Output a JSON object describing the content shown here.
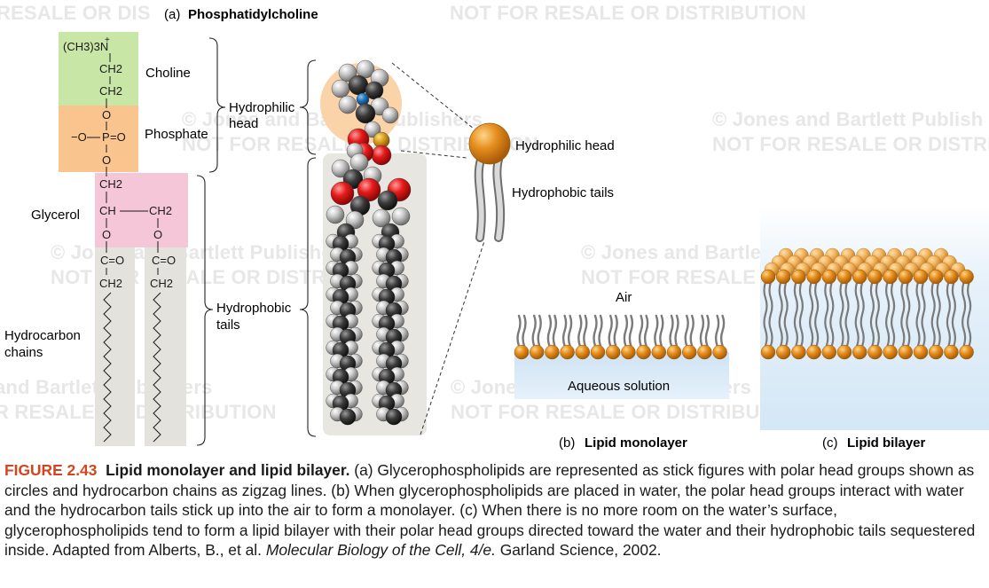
{
  "watermarks": [
    "RESALE OR DIS",
    "NOT FOR RESALE OR DISTRIBUTION",
    "© Jones and Bartlett Publishers",
    "NOT FOR RESALE OR DISTRIBUTION",
    "© Jones and Bartlett Publish",
    "NOT FOR RESALE OR DISTRI",
    "© Jones and Bartlett Publishers",
    "NOT FOR RESALE OR DISTRIBUTION",
    "© Jones and Bartlett Publishers",
    "NOT FOR RESALE OR DISTRIBUTION",
    "and Bartlett Publishers",
    "R RESALE OR DISTRIBUTION",
    "© Jones and Bartlett Publishers",
    "NOT FOR RESALE OR DISTRIBUTION"
  ],
  "panel_a": {
    "label": "(a)",
    "title": "Phosphatidylcholine",
    "formula": {
      "trimethylammonium": "(CH3)3N",
      "plus": "+",
      "ch2": "CH2",
      "o": "O",
      "o_minus": "−O",
      "p": "P",
      "eq_o": "=O",
      "ch": "CH",
      "c_eq_o": "C=O"
    },
    "labels": {
      "choline": "Choline",
      "phosphate": "Phosphate",
      "glycerol": "Glycerol",
      "hydrocarbon_1": "Hydrocarbon",
      "hydrocarbon_2": "chains",
      "hydrophilic_1": "Hydrophilic",
      "hydrophilic_2": "head",
      "hydrophobic_1": "Hydrophobic",
      "hydrophobic_2": "tails"
    },
    "colors": {
      "choline": "#c8e6a5",
      "phosphate": "#f9c48e",
      "glycerol": "#f5c6d7",
      "chains": "#e4e2dd",
      "model_panel": "#e8e6e1",
      "head_halo": "#fbd3a9"
    }
  },
  "schematic": {
    "head_label": "Hydrophilic head",
    "tails_label": "Hydrophobic tails",
    "head_color": "#e08a22"
  },
  "panel_b": {
    "label": "(b)",
    "title": "Lipid monolayer",
    "air": "Air",
    "water": "Aqueous solution"
  },
  "panel_c": {
    "label": "(c)",
    "title": "Lipid bilayer",
    "water_color": "#d8eaf7"
  },
  "caption": {
    "number": "FIGURE 2.43",
    "title": "Lipid monolayer and lipid bilayer.",
    "text_1": " (a) Glycerophospholipids are represented as stick figures with polar head groups shown as circles and hydrocarbon chains as zigzag lines. (b) When glycerophospholipids are placed in water, the polar head groups interact with water and the hydrocarbon tails stick up into the air to form a monolayer. (c) When there is no more room on the water’s surface, glycerophospholipids tend to form a lipid bilayer with their polar head groups directed toward the water and their hydrophobic tails sequestered inside. Adapted from Alberts, B., et al. ",
    "book": "Molecular Biology of the Cell, 4/e.",
    "text_2": " Garland Science, 2002."
  }
}
